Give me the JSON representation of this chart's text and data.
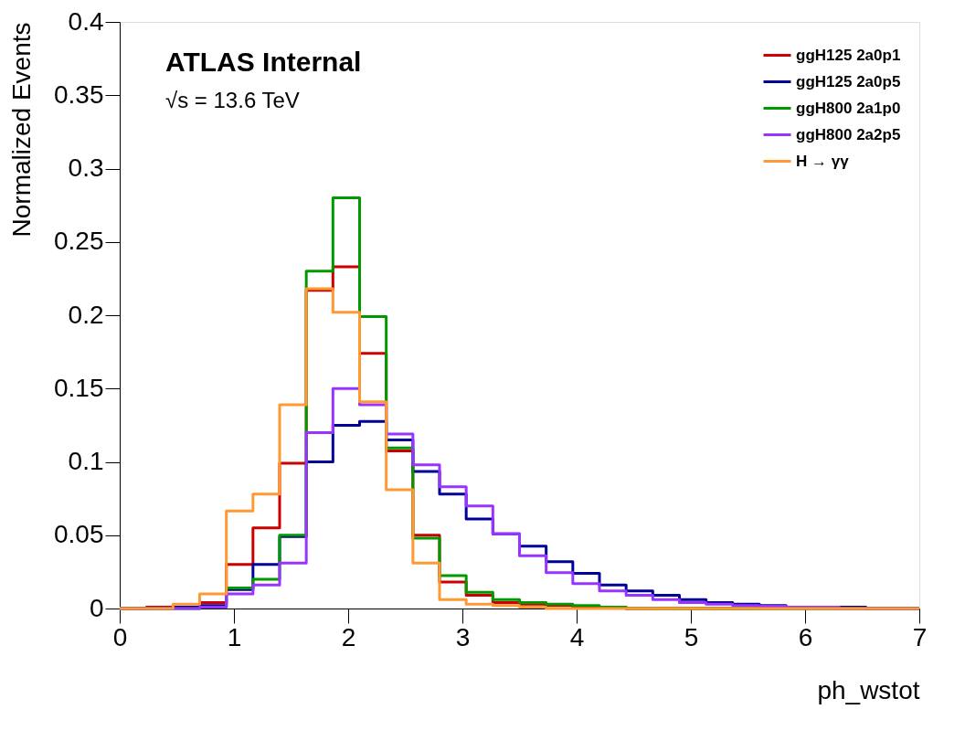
{
  "chart_data": {
    "type": "histogram",
    "xlabel": "ph_wstot",
    "ylabel": "Normalized Events",
    "annotations": [
      "ATLAS Internal",
      "√s = 13.6 TeV"
    ],
    "bins": [
      0,
      0.2333,
      0.4667,
      0.7,
      0.9333,
      1.1667,
      1.4,
      1.6333,
      1.8667,
      2.1,
      2.3333,
      2.5667,
      2.8,
      3.0333,
      3.2667,
      3.5,
      3.7333,
      3.9667,
      4.2,
      4.4333,
      4.6667,
      4.9,
      5.1333,
      5.3667,
      5.6,
      5.8333,
      6.0667,
      6.3,
      6.5333,
      6.7667,
      7
    ],
    "series": [
      {
        "name": "ggH125 2a0p1",
        "color": "#cc0000",
        "values": [
          0,
          0.001,
          0.001,
          0.004,
          0.03,
          0.055,
          0.099,
          0.217,
          0.233,
          0.174,
          0.1075,
          0.05,
          0.018,
          0.009,
          0.004,
          0.003,
          0.002,
          0.001,
          0.001,
          0,
          0,
          0,
          0,
          0,
          0,
          0,
          0,
          0,
          0,
          0
        ]
      },
      {
        "name": "ggH125 2a0p5",
        "color": "#000099",
        "values": [
          0,
          0,
          0.001,
          0.002,
          0.013,
          0.03,
          0.049,
          0.1,
          0.125,
          0.1275,
          0.115,
          0.0935,
          0.078,
          0.061,
          0.051,
          0.0425,
          0.032,
          0.024,
          0.016,
          0.012,
          0.009,
          0.006,
          0.004,
          0.003,
          0.002,
          0.001,
          0.001,
          0.001,
          0,
          0
        ]
      },
      {
        "name": "ggH800 2a1p0",
        "color": "#009900",
        "values": [
          0,
          0,
          0,
          0.001,
          0.014,
          0.02,
          0.05,
          0.23,
          0.28,
          0.199,
          0.1095,
          0.048,
          0.0225,
          0.011,
          0.006,
          0.004,
          0.003,
          0.002,
          0.001,
          0,
          0,
          0,
          0,
          0,
          0,
          0,
          0,
          0,
          0,
          0
        ]
      },
      {
        "name": "ggH800 2a2p5",
        "color": "#9933ff",
        "values": [
          0,
          0,
          0,
          0.001,
          0.01,
          0.016,
          0.031,
          0.12,
          0.15,
          0.139,
          0.119,
          0.098,
          0.083,
          0.07,
          0.051,
          0.036,
          0.0245,
          0.017,
          0.012,
          0.009,
          0.006,
          0.004,
          0.003,
          0.002,
          0.0015,
          0.001,
          0.001,
          0,
          0,
          0
        ]
      },
      {
        "name": "H → γγ",
        "color": "#ff9933",
        "values": [
          0,
          0,
          0.003,
          0.01,
          0.0665,
          0.078,
          0.139,
          0.218,
          0.202,
          0.141,
          0.081,
          0.031,
          0.006,
          0.003,
          0.002,
          0.001,
          0,
          0,
          0,
          0,
          0,
          0,
          0,
          0,
          0,
          0,
          0,
          0,
          0,
          0
        ]
      }
    ],
    "xlim": [
      0,
      7
    ],
    "xticks": [
      0,
      1,
      2,
      3,
      4,
      5,
      6,
      7
    ],
    "ylim": [
      0,
      0.4
    ],
    "yticks": [
      0,
      0.05,
      0.1,
      0.15,
      0.2,
      0.25,
      0.3,
      0.35,
      0.4
    ],
    "grid": false,
    "legend": "top right"
  }
}
